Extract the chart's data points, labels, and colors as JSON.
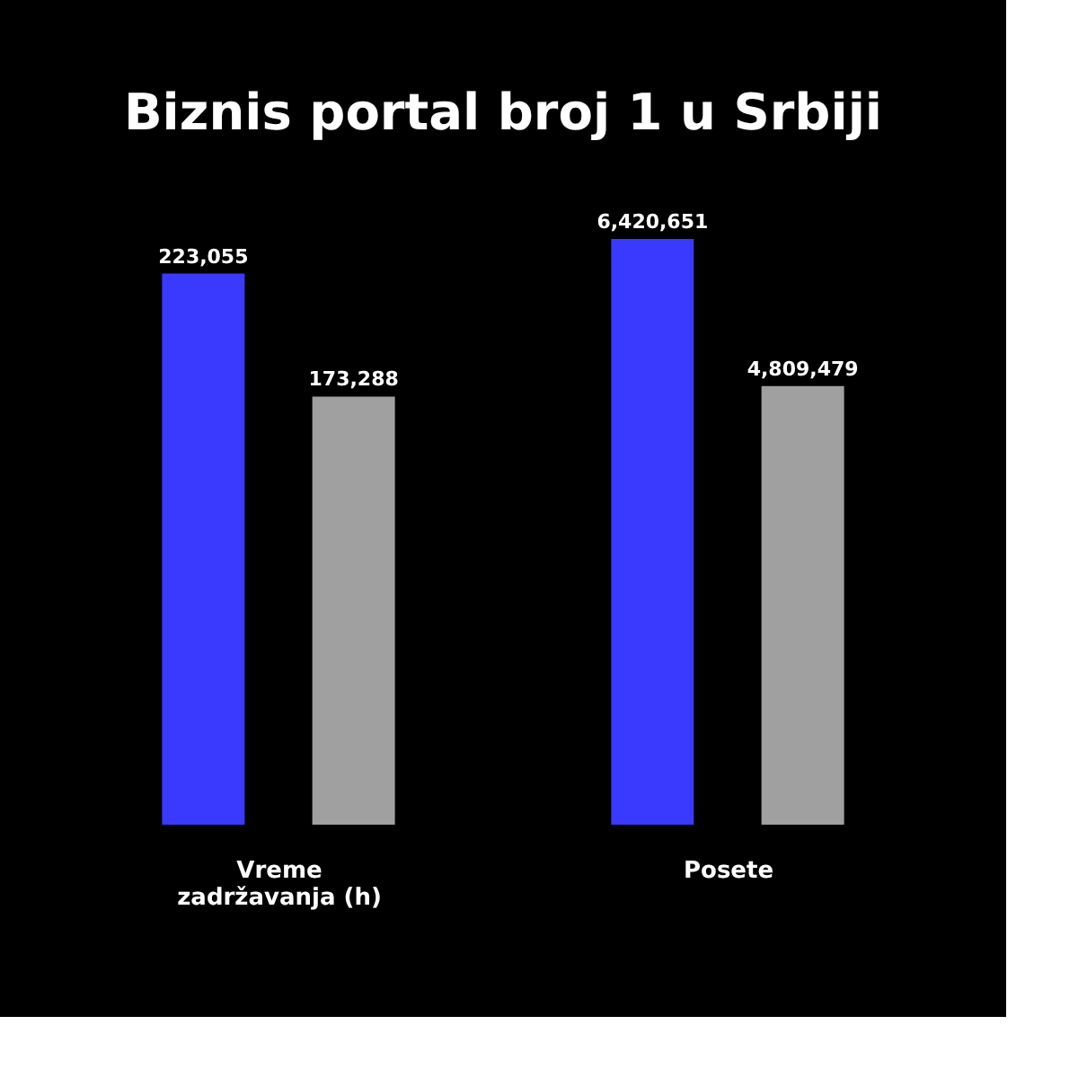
{
  "chart_data": [
    {
      "type": "bar",
      "title": "Biznis portal broj 1 u Srbiji",
      "xlabel": "Vreme zadržavanja (h)",
      "categories": [
        null,
        null
      ],
      "data_labels": true,
      "value_labels": [
        "223,055",
        "173,288"
      ],
      "values": [
        223055,
        173288
      ],
      "colors": [
        "#3a3aff",
        "#a0a0a0"
      ]
    },
    {
      "type": "bar",
      "xlabel": "Posete",
      "categories": [
        null,
        null
      ],
      "data_labels": true,
      "value_labels": [
        "6,420,651",
        "4,809,479"
      ],
      "values": [
        6420651,
        4809479
      ],
      "colors": [
        "#3a3aff",
        "#a0a0a0"
      ]
    }
  ]
}
